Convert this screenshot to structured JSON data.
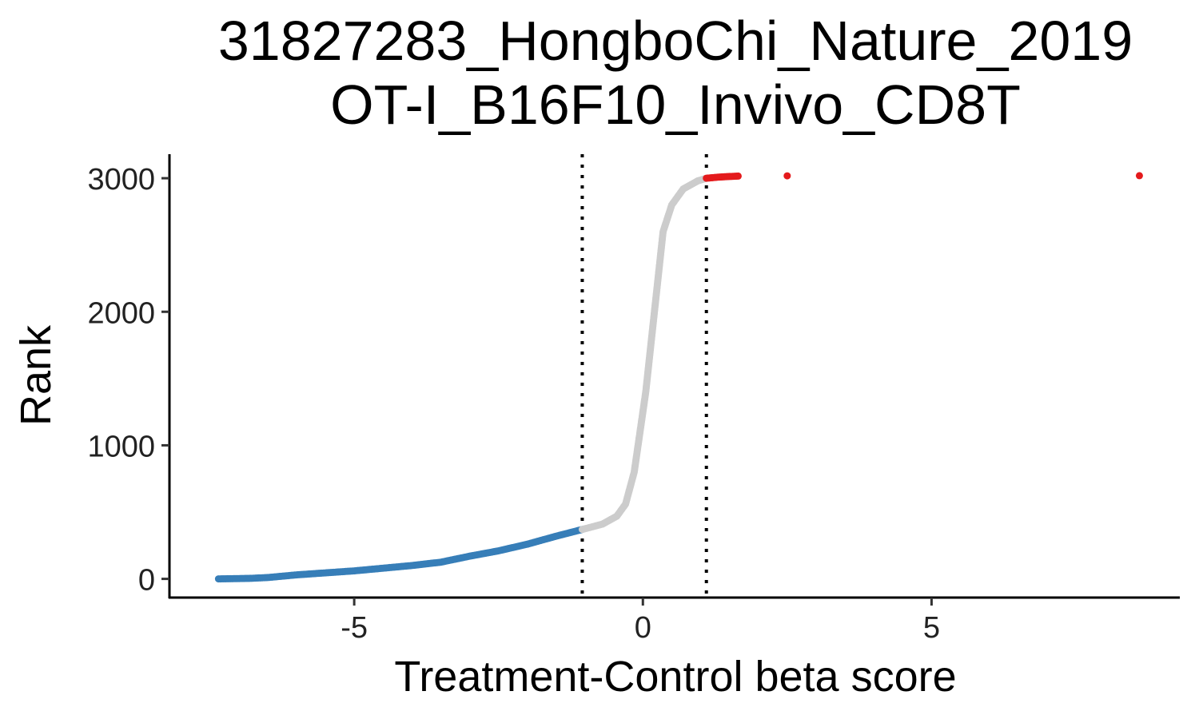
{
  "chart_data": {
    "type": "scatter",
    "title_lines": [
      "31827283_HongboChi_Nature_2019",
      "OT-I_B16F10_Invivo_CD8T"
    ],
    "xlabel": "Treatment-Control beta score",
    "ylabel": "Rank",
    "xlim": [
      -8.2,
      9.3
    ],
    "ylim": [
      -140,
      3180
    ],
    "x_ticks": [
      {
        "value": -5,
        "label": "-5"
      },
      {
        "value": 0,
        "label": "0"
      },
      {
        "value": 5,
        "label": "5"
      }
    ],
    "y_ticks": [
      {
        "value": 0,
        "label": "0"
      },
      {
        "value": 1000,
        "label": "1000"
      },
      {
        "value": 2000,
        "label": "2000"
      },
      {
        "value": 3000,
        "label": "3000"
      }
    ],
    "thresholds": [
      -1.05,
      1.1
    ],
    "grid": false,
    "legend": "none",
    "n_points": 3019,
    "series": [
      {
        "group": "negative",
        "color": "#377EB8",
        "values": [
          [
            -7.35,
            0
          ],
          [
            -7.2,
            1
          ],
          [
            -7.05,
            2
          ],
          [
            -6.8,
            4
          ],
          [
            -6.5,
            10
          ],
          [
            -6.0,
            30
          ],
          [
            -5.5,
            45
          ],
          [
            -5.0,
            60
          ],
          [
            -4.5,
            80
          ],
          [
            -4.0,
            100
          ],
          [
            -3.5,
            125
          ],
          [
            -3.0,
            170
          ],
          [
            -2.5,
            210
          ],
          [
            -2.0,
            260
          ],
          [
            -1.5,
            320
          ],
          [
            -1.05,
            370
          ]
        ]
      },
      {
        "group": "neutral",
        "color": "#CCCCCC",
        "values": [
          [
            -1.05,
            370
          ],
          [
            -0.7,
            410
          ],
          [
            -0.45,
            470
          ],
          [
            -0.3,
            560
          ],
          [
            -0.15,
            800
          ],
          [
            -0.05,
            1100
          ],
          [
            0.05,
            1400
          ],
          [
            0.15,
            1800
          ],
          [
            0.25,
            2200
          ],
          [
            0.35,
            2600
          ],
          [
            0.5,
            2800
          ],
          [
            0.7,
            2920
          ],
          [
            0.95,
            2980
          ],
          [
            1.1,
            3000
          ]
        ]
      },
      {
        "group": "positive",
        "color": "#E41A1C",
        "values": [
          [
            1.1,
            3000
          ],
          [
            1.3,
            3008
          ],
          [
            1.5,
            3013
          ],
          [
            1.65,
            3016
          ],
          [
            2.5,
            3018
          ],
          [
            8.6,
            3019
          ]
        ]
      }
    ]
  }
}
